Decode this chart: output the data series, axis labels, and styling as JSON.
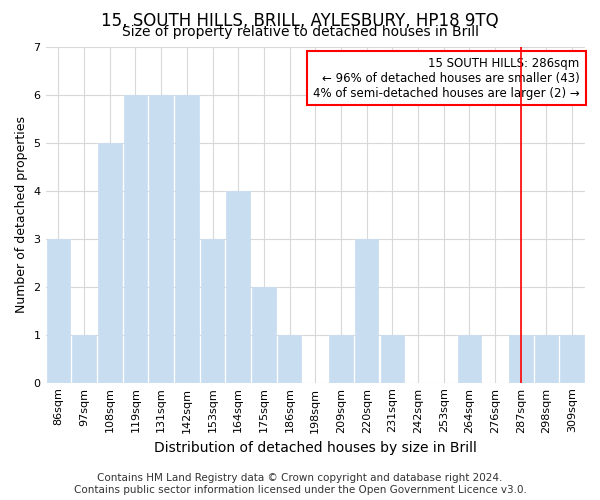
{
  "title1": "15, SOUTH HILLS, BRILL, AYLESBURY, HP18 9TQ",
  "title2": "Size of property relative to detached houses in Brill",
  "xlabel": "Distribution of detached houses by size in Brill",
  "ylabel": "Number of detached properties",
  "categories": [
    "86sqm",
    "97sqm",
    "108sqm",
    "119sqm",
    "131sqm",
    "142sqm",
    "153sqm",
    "164sqm",
    "175sqm",
    "186sqm",
    "198sqm",
    "209sqm",
    "220sqm",
    "231sqm",
    "242sqm",
    "253sqm",
    "264sqm",
    "276sqm",
    "287sqm",
    "298sqm",
    "309sqm"
  ],
  "values": [
    3,
    1,
    5,
    6,
    6,
    6,
    3,
    4,
    2,
    1,
    0,
    1,
    3,
    1,
    0,
    0,
    1,
    0,
    1,
    1,
    1
  ],
  "bar_color": "#c9ddf0",
  "bar_edge_color": "#c9ddf0",
  "red_line_index": 18,
  "ylim": [
    0,
    7
  ],
  "yticks": [
    0,
    1,
    2,
    3,
    4,
    5,
    6,
    7
  ],
  "annotation_title": "15 SOUTH HILLS: 286sqm",
  "annotation_line1": "← 96% of detached houses are smaller (43)",
  "annotation_line2": "4% of semi-detached houses are larger (2) →",
  "footer1": "Contains HM Land Registry data © Crown copyright and database right 2024.",
  "footer2": "Contains public sector information licensed under the Open Government Licence v3.0.",
  "background_color": "#ffffff",
  "grid_color": "#d8d8d8",
  "title1_fontsize": 12,
  "title2_fontsize": 10,
  "xlabel_fontsize": 10,
  "ylabel_fontsize": 9,
  "tick_fontsize": 8,
  "annotation_fontsize": 8.5,
  "footer_fontsize": 7.5
}
